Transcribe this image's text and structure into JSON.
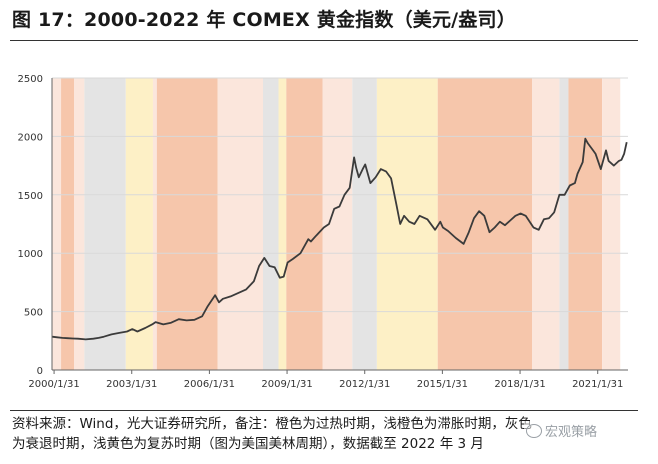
{
  "header": {
    "title": "图 17：2000-2022 年 COMEX 黄金指数（美元/盎司）"
  },
  "note": {
    "line1": "资料来源：Wind，光大证券研究所，备注：橙色为过热时期，浅橙色为滞胀时期，灰色",
    "line2": "为衰退时期，浅黄色为复苏时期（图为美国美林周期），数据截至 2022 年 3 月"
  },
  "watermark": {
    "text": "宏观策略",
    "icon": "wechat-icon"
  },
  "phase_colors": {
    "overheat": "#f6c6ab",
    "stagflation": "#fbe6dc",
    "recession": "#e4e4e4",
    "recovery": "#fdf0c6"
  },
  "line_color": "#3b3b3b",
  "chart_data": {
    "type": "line",
    "title": "COMEX 黄金指数",
    "xlabel": "",
    "ylabel": "美元/盎司",
    "x_range": [
      2000.0,
      2022.25
    ],
    "ylim": [
      0,
      2500
    ],
    "yticks": [
      0,
      500,
      1000,
      1500,
      2000,
      2500
    ],
    "y_tick_labels": [
      "0",
      "500",
      "1000",
      "1500",
      "2000",
      "2500"
    ],
    "xticks": [
      2000.08,
      2003.08,
      2006.08,
      2009.08,
      2012.08,
      2015.08,
      2018.08,
      2021.08
    ],
    "x_tick_labels": [
      "2000/1/31",
      "2003/1/31",
      "2006/1/31",
      "2009/1/31",
      "2012/1/31",
      "2015/1/31",
      "2018/1/31",
      "2021/1/31"
    ],
    "grid": "horizontal",
    "phases": [
      {
        "start": 2000.0,
        "end": 2000.35,
        "type": "stagflation"
      },
      {
        "start": 2000.35,
        "end": 2000.85,
        "type": "overheat"
      },
      {
        "start": 2000.85,
        "end": 2001.25,
        "type": "stagflation"
      },
      {
        "start": 2001.25,
        "end": 2002.85,
        "type": "recession"
      },
      {
        "start": 2002.85,
        "end": 2003.9,
        "type": "recovery"
      },
      {
        "start": 2003.9,
        "end": 2004.05,
        "type": "stagflation"
      },
      {
        "start": 2004.05,
        "end": 2006.4,
        "type": "overheat"
      },
      {
        "start": 2006.4,
        "end": 2008.15,
        "type": "stagflation"
      },
      {
        "start": 2008.15,
        "end": 2008.75,
        "type": "recession"
      },
      {
        "start": 2008.75,
        "end": 2009.05,
        "type": "recovery"
      },
      {
        "start": 2009.05,
        "end": 2010.45,
        "type": "overheat"
      },
      {
        "start": 2010.45,
        "end": 2011.6,
        "type": "stagflation"
      },
      {
        "start": 2011.6,
        "end": 2012.55,
        "type": "recession"
      },
      {
        "start": 2012.55,
        "end": 2014.9,
        "type": "recovery"
      },
      {
        "start": 2014.9,
        "end": 2018.55,
        "type": "overheat"
      },
      {
        "start": 2018.55,
        "end": 2019.6,
        "type": "stagflation"
      },
      {
        "start": 2019.6,
        "end": 2019.95,
        "type": "recession"
      },
      {
        "start": 2019.95,
        "end": 2021.25,
        "type": "overheat"
      },
      {
        "start": 2021.25,
        "end": 2021.95,
        "type": "stagflation"
      }
    ],
    "series": [
      {
        "name": "COMEX 黄金",
        "x": [
          2000.0,
          2000.2,
          2000.4,
          2000.6,
          2000.8,
          2001.0,
          2001.3,
          2001.6,
          2001.8,
          2002.0,
          2002.3,
          2002.6,
          2002.9,
          2003.1,
          2003.3,
          2003.6,
          2003.9,
          2004.0,
          2004.3,
          2004.6,
          2004.9,
          2005.2,
          2005.5,
          2005.8,
          2006.0,
          2006.3,
          2006.45,
          2006.6,
          2006.9,
          2007.2,
          2007.5,
          2007.8,
          2008.0,
          2008.2,
          2008.4,
          2008.6,
          2008.8,
          2008.95,
          2009.1,
          2009.3,
          2009.6,
          2009.9,
          2010.0,
          2010.2,
          2010.5,
          2010.7,
          2010.9,
          2011.1,
          2011.3,
          2011.5,
          2011.67,
          2011.75,
          2011.85,
          2012.0,
          2012.1,
          2012.3,
          2012.5,
          2012.7,
          2012.9,
          2013.1,
          2013.3,
          2013.45,
          2013.6,
          2013.8,
          2014.0,
          2014.2,
          2014.5,
          2014.8,
          2015.0,
          2015.1,
          2015.3,
          2015.6,
          2015.9,
          2016.1,
          2016.3,
          2016.5,
          2016.7,
          2016.9,
          2017.1,
          2017.3,
          2017.5,
          2017.7,
          2017.9,
          2018.1,
          2018.3,
          2018.6,
          2018.8,
          2019.0,
          2019.2,
          2019.4,
          2019.6,
          2019.8,
          2020.0,
          2020.2,
          2020.3,
          2020.5,
          2020.6,
          2020.7,
          2020.9,
          2021.0,
          2021.2,
          2021.4,
          2021.5,
          2021.7,
          2021.9,
          2022.0,
          2022.1,
          2022.2
        ],
        "values": [
          285,
          280,
          275,
          272,
          270,
          268,
          262,
          268,
          275,
          285,
          305,
          318,
          330,
          350,
          330,
          360,
          395,
          410,
          390,
          405,
          435,
          425,
          430,
          460,
          540,
          640,
          580,
          610,
          630,
          660,
          690,
          760,
          890,
          960,
          890,
          880,
          790,
          800,
          920,
          950,
          1000,
          1120,
          1100,
          1150,
          1220,
          1250,
          1380,
          1400,
          1500,
          1560,
          1820,
          1730,
          1650,
          1720,
          1760,
          1600,
          1650,
          1720,
          1700,
          1640,
          1420,
          1250,
          1320,
          1270,
          1250,
          1320,
          1290,
          1200,
          1270,
          1220,
          1190,
          1130,
          1080,
          1180,
          1300,
          1360,
          1320,
          1180,
          1220,
          1270,
          1240,
          1280,
          1320,
          1340,
          1320,
          1220,
          1200,
          1290,
          1300,
          1350,
          1500,
          1500,
          1580,
          1600,
          1680,
          1780,
          1980,
          1940,
          1880,
          1850,
          1720,
          1880,
          1790,
          1750,
          1790,
          1800,
          1850,
          1950
        ]
      }
    ]
  }
}
